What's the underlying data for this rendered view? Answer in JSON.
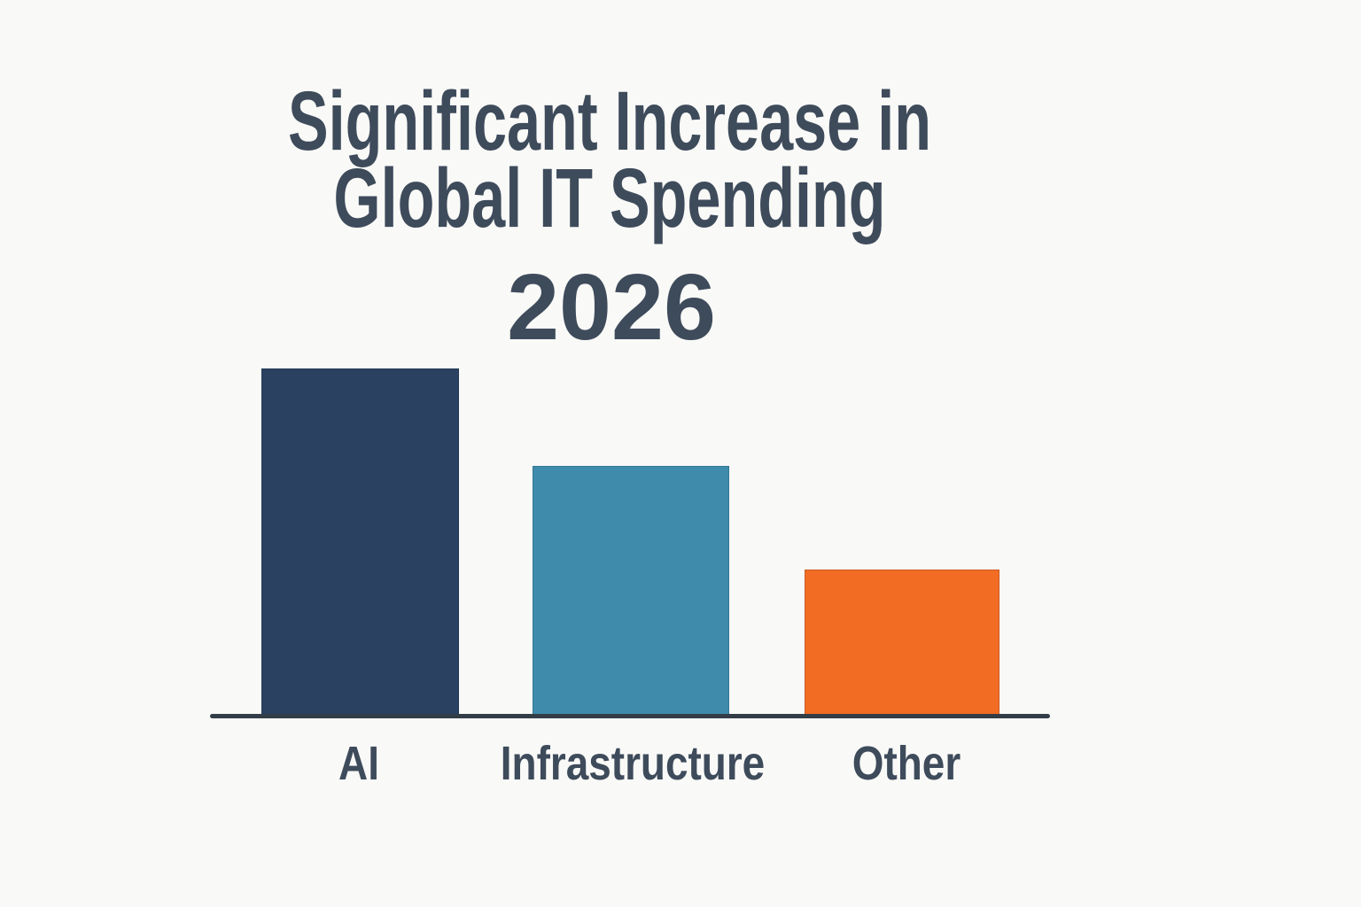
{
  "page": {
    "background": "#f9f9f7",
    "text_color": "#3e4b5b"
  },
  "header": {
    "title_line1": "Significant Increase in",
    "title_line2": "Global IT Spending",
    "year": "2026"
  },
  "chart_data": {
    "type": "bar",
    "title": "Significant Increase in Global IT Spending",
    "subtitle": "2026",
    "categories": [
      "AI",
      "Infrastructure",
      "Other"
    ],
    "values": [
      100,
      72,
      42
    ],
    "values_note": "no numeric axis or data labels shown; values estimated from relative bar heights with tallest bar (AI) = 100",
    "bar_colors": [
      "#2a4161",
      "#3e8bac",
      "#f26c23"
    ],
    "axis_color": "#333d47",
    "xlabel": "",
    "ylabel": "",
    "ylim": [
      0,
      100
    ],
    "grid": false,
    "legend": false,
    "legend_position": "none"
  }
}
